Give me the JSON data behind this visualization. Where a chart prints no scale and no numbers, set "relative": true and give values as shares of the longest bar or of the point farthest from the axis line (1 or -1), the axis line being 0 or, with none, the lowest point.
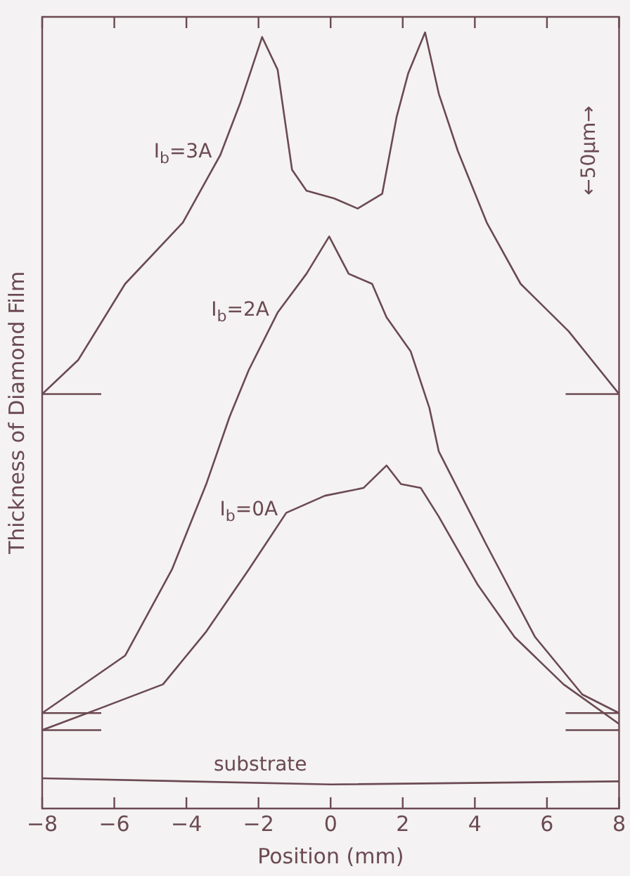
{
  "chart_data": {
    "type": "line",
    "xlabel": "Position (mm)",
    "ylabel": "Thickness of Diamond Film",
    "relative": true,
    "legend": false,
    "grid": false,
    "marker": "none",
    "line_style": "solid",
    "xlim": [
      -8,
      8
    ],
    "xticks": [
      -8,
      -6,
      -4,
      -2,
      0,
      2,
      4,
      6,
      8
    ],
    "annotations": [
      "←50μm→"
    ],
    "ref_lines": [
      {
        "axis": "y",
        "value": 0.534,
        "color": "#6b4a52"
      },
      {
        "axis": "y",
        "value": 0.123,
        "color": "#6b4a52"
      },
      {
        "axis": "y",
        "value": 0.101,
        "color": "#6b4a52"
      }
    ],
    "series": [
      {
        "name": "I$_{b}$=3A",
        "color": "#6b4a52",
        "x": [
          -8,
          -7,
          -5.7,
          -4.1,
          -3.06,
          -2.5,
          -1.9,
          -1.47,
          -1.07,
          -0.67,
          0.1,
          0.75,
          1.43,
          1.83,
          2.15,
          2.62,
          3,
          3.53,
          4.33,
          5.27,
          6.6,
          8
        ],
        "values": [
          0.534,
          0.578,
          0.676,
          0.755,
          0.842,
          0.91,
          0.994,
          0.952,
          0.823,
          0.796,
          0.786,
          0.773,
          0.792,
          0.891,
          0.947,
          1,
          0.921,
          0.847,
          0.755,
          0.676,
          0.615,
          0.534
        ]
      },
      {
        "name": "I$_{b}$=2A",
        "color": "#6b4a52",
        "x": [
          -8,
          -5.7,
          -4.4,
          -3.45,
          -2.8,
          -2.27,
          -1.47,
          -0.67,
          -0.04,
          0.5,
          1.15,
          1.55,
          2.22,
          2.74,
          3,
          4.33,
          5.67,
          6.98,
          8
        ],
        "values": [
          0.123,
          0.197,
          0.308,
          0.418,
          0.505,
          0.565,
          0.639,
          0.689,
          0.737,
          0.689,
          0.676,
          0.633,
          0.589,
          0.516,
          0.46,
          0.339,
          0.221,
          0.147,
          0.123
        ]
      },
      {
        "name": "I$_{b}$=0A",
        "color": "#6b4a52",
        "x": [
          -8,
          -6.4,
          -4.65,
          -3.45,
          -2.27,
          -1.23,
          -0.16,
          0.91,
          1.55,
          1.95,
          2.5,
          3,
          4.07,
          5.1,
          6.46,
          8
        ],
        "values": [
          0.101,
          0.129,
          0.16,
          0.228,
          0.308,
          0.381,
          0.403,
          0.413,
          0.442,
          0.418,
          0.413,
          0.376,
          0.289,
          0.221,
          0.16,
          0.109
        ]
      },
      {
        "name": "substrate",
        "color": "#6b4a52",
        "x": [
          -8,
          0,
          8
        ],
        "values": [
          0.039,
          0.031,
          0.035
        ]
      }
    ]
  }
}
